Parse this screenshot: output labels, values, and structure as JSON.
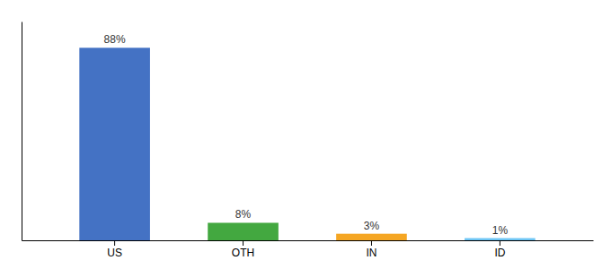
{
  "chart_data": {
    "type": "bar",
    "categories": [
      "US",
      "OTH",
      "IN",
      "ID"
    ],
    "values": [
      88,
      8,
      3,
      1
    ],
    "value_labels": [
      "88%",
      "8%",
      "3%",
      "1%"
    ],
    "colors": [
      "#4472c4",
      "#43a840",
      "#f5a623",
      "#6ec6f5"
    ],
    "ylim": [
      0,
      100
    ],
    "data_labels": true,
    "tick_labels": "x",
    "grid": false
  }
}
